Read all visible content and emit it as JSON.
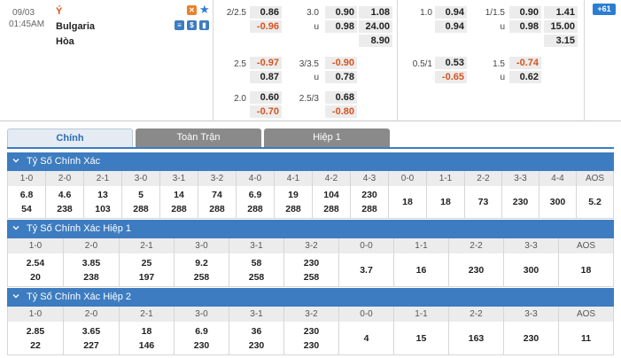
{
  "match": {
    "date": "09/03",
    "time": "01:45AM",
    "home": "Ý",
    "away": "Bulgaria",
    "draw": "Hòa",
    "more_count": "+61",
    "handicap_ft": [
      {
        "line": "2/2.5",
        "home": "0.86",
        "away": "-0.96"
      },
      {
        "line": "2.5",
        "home": "-0.97",
        "away": "0.87"
      },
      {
        "line": "2.0",
        "home": "0.60",
        "away": "-0.70"
      }
    ],
    "ou_ft": [
      {
        "line": "3.0",
        "over": "0.90",
        "u": "u",
        "under": "0.98"
      },
      {
        "line": "3/3.5",
        "over": "-0.90",
        "u": "u",
        "under": "0.78"
      },
      {
        "line": "2.5/3",
        "over": "0.68",
        "u": "",
        "under": "-0.80"
      }
    ],
    "x12_ft": [
      "1.08",
      "24.00",
      "8.90"
    ],
    "handicap_1h": [
      {
        "line": "1.0",
        "home": "0.94",
        "away": "0.94"
      },
      {
        "line": "0.5/1",
        "home": "0.53",
        "away": "-0.65"
      }
    ],
    "ou_1h": [
      {
        "line": "1/1.5",
        "over": "0.90",
        "u": "u",
        "under": "0.98"
      },
      {
        "line": "1.5",
        "over": "-0.74",
        "u": "u",
        "under": "0.62"
      }
    ],
    "x12_1h": [
      "1.41",
      "15.00",
      "3.15"
    ]
  },
  "tabs": {
    "main": "Chính",
    "full": "Toàn Trận",
    "half": "Hiệp 1"
  },
  "sections": [
    {
      "title": "Tỷ Số Chính Xác",
      "cols": [
        {
          "h": "1-0",
          "v": [
            "6.8",
            "54"
          ]
        },
        {
          "h": "2-0",
          "v": [
            "4.6",
            "238"
          ]
        },
        {
          "h": "2-1",
          "v": [
            "13",
            "103"
          ]
        },
        {
          "h": "3-0",
          "v": [
            "5",
            "288"
          ]
        },
        {
          "h": "3-1",
          "v": [
            "14",
            "288"
          ]
        },
        {
          "h": "3-2",
          "v": [
            "74",
            "288"
          ]
        },
        {
          "h": "4-0",
          "v": [
            "6.9",
            "288"
          ]
        },
        {
          "h": "4-1",
          "v": [
            "19",
            "288"
          ]
        },
        {
          "h": "4-2",
          "v": [
            "104",
            "288"
          ]
        },
        {
          "h": "4-3",
          "v": [
            "230",
            "288"
          ]
        },
        {
          "h": "0-0",
          "v": [
            "18"
          ]
        },
        {
          "h": "1-1",
          "v": [
            "18"
          ]
        },
        {
          "h": "2-2",
          "v": [
            "73"
          ]
        },
        {
          "h": "3-3",
          "v": [
            "230"
          ]
        },
        {
          "h": "4-4",
          "v": [
            "300"
          ]
        },
        {
          "h": "AOS",
          "v": [
            "5.2"
          ]
        }
      ]
    },
    {
      "title": "Tỷ Số Chính Xác Hiệp 1",
      "cols": [
        {
          "h": "1-0",
          "v": [
            "2.54",
            "20"
          ]
        },
        {
          "h": "2-0",
          "v": [
            "3.85",
            "238"
          ]
        },
        {
          "h": "2-1",
          "v": [
            "25",
            "197"
          ]
        },
        {
          "h": "3-0",
          "v": [
            "9.2",
            "258"
          ]
        },
        {
          "h": "3-1",
          "v": [
            "58",
            "258"
          ]
        },
        {
          "h": "3-2",
          "v": [
            "230",
            "258"
          ]
        },
        {
          "h": "0-0",
          "v": [
            "3.7"
          ]
        },
        {
          "h": "1-1",
          "v": [
            "16"
          ]
        },
        {
          "h": "2-2",
          "v": [
            "230"
          ]
        },
        {
          "h": "3-3",
          "v": [
            "300"
          ]
        },
        {
          "h": "AOS",
          "v": [
            "18"
          ]
        }
      ]
    },
    {
      "title": "Tỷ Số Chính Xác Hiệp 2",
      "cols": [
        {
          "h": "1-0",
          "v": [
            "2.85",
            "22"
          ]
        },
        {
          "h": "2-0",
          "v": [
            "3.65",
            "227"
          ]
        },
        {
          "h": "2-1",
          "v": [
            "18",
            "146"
          ]
        },
        {
          "h": "3-0",
          "v": [
            "6.9",
            "230"
          ]
        },
        {
          "h": "3-1",
          "v": [
            "36",
            "230"
          ]
        },
        {
          "h": "3-2",
          "v": [
            "230",
            "230"
          ]
        },
        {
          "h": "0-0",
          "v": [
            "4"
          ]
        },
        {
          "h": "1-1",
          "v": [
            "15"
          ]
        },
        {
          "h": "2-2",
          "v": [
            "163"
          ]
        },
        {
          "h": "3-3",
          "v": [
            "230"
          ]
        },
        {
          "h": "AOS",
          "v": [
            "11"
          ]
        }
      ]
    }
  ],
  "colors": {
    "header_blue": "#3d7cc0",
    "negative_odds": "#d9531e",
    "tab_inactive": "#8a8a8a"
  },
  "icons": [
    "calendar-x-icon",
    "star-icon",
    "stats-icon",
    "dollar-icon",
    "chart-icon",
    "chevron-down-icon"
  ]
}
